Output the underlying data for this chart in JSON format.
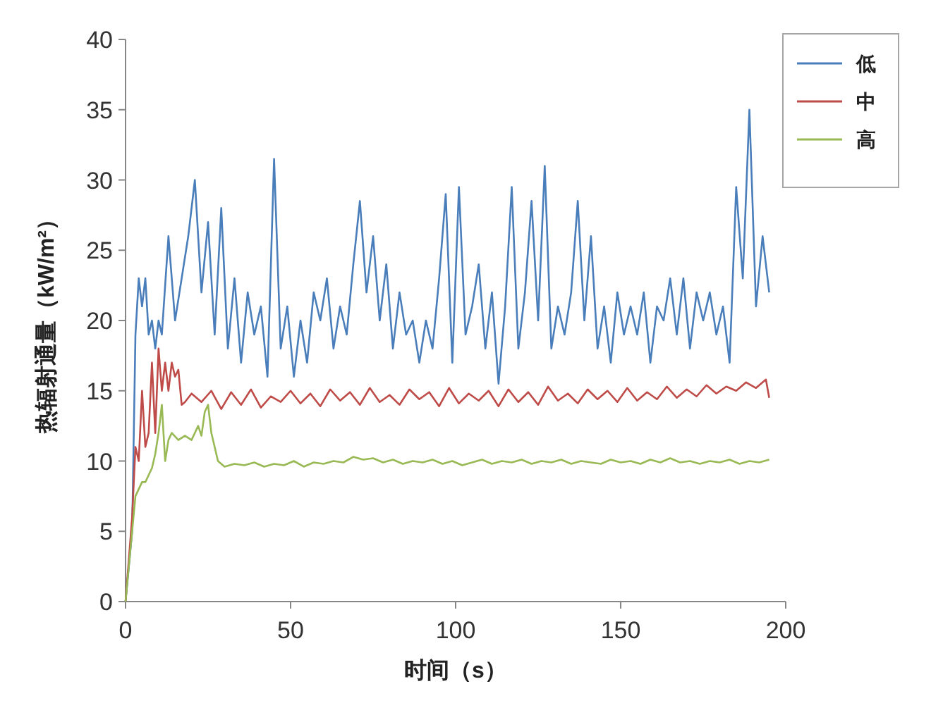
{
  "chart_data": {
    "type": "line",
    "xlabel": "时间（s）",
    "ylabel": "热辐射通量（kW/m²）",
    "xlim": [
      0,
      200
    ],
    "xticks": [
      0,
      50,
      100,
      150,
      200
    ],
    "ylim": [
      0,
      40
    ],
    "yticks": [
      0,
      5,
      10,
      15,
      20,
      25,
      30,
      35,
      40
    ],
    "grid": false,
    "legend": "top right",
    "marker": "none",
    "line_style": "solid",
    "series": [
      {
        "name": "低",
        "color": "#4a7ebb",
        "x": [
          0,
          2,
          3,
          4,
          5,
          6,
          7,
          8,
          9,
          10,
          11,
          13,
          15,
          17,
          19,
          21,
          23,
          25,
          27,
          29,
          31,
          33,
          35,
          37,
          39,
          41,
          43,
          45,
          47,
          49,
          51,
          53,
          55,
          57,
          59,
          61,
          63,
          65,
          67,
          69,
          71,
          73,
          75,
          77,
          79,
          81,
          83,
          85,
          87,
          89,
          91,
          93,
          95,
          97,
          99,
          101,
          103,
          105,
          107,
          109,
          111,
          113,
          115,
          117,
          119,
          121,
          123,
          125,
          127,
          129,
          131,
          133,
          135,
          137,
          139,
          141,
          143,
          145,
          147,
          149,
          151,
          153,
          155,
          157,
          159,
          161,
          163,
          165,
          167,
          169,
          171,
          173,
          175,
          177,
          179,
          181,
          183,
          185,
          187,
          189,
          191,
          193,
          195
        ],
        "values": [
          0,
          5,
          19,
          23,
          21,
          23,
          19,
          20,
          18,
          20,
          19,
          26,
          20,
          23,
          26,
          30,
          22,
          27,
          19,
          28,
          18,
          23,
          17,
          22,
          19,
          21,
          16,
          31.5,
          18,
          21,
          16,
          20,
          17,
          22,
          20,
          23,
          18,
          21,
          19,
          24,
          28.5,
          22,
          26,
          20,
          24,
          18,
          22,
          19,
          20,
          17,
          20,
          18,
          23,
          29,
          17,
          29.5,
          19,
          21,
          24,
          18,
          22,
          15.5,
          21,
          29.5,
          18,
          22,
          28.5,
          20,
          31,
          18,
          21,
          19,
          22,
          28.5,
          20,
          26,
          18,
          21,
          17,
          22,
          19,
          21,
          19,
          22,
          17,
          21,
          20,
          23,
          19,
          23,
          18,
          22,
          20,
          22,
          19,
          21,
          17,
          29.5,
          23,
          35,
          21,
          26,
          22
        ]
      },
      {
        "name": "中",
        "color": "#be4b48",
        "x": [
          0,
          2,
          3,
          4,
          5,
          6,
          7,
          8,
          9,
          10,
          11,
          12,
          13,
          14,
          15,
          16,
          17,
          18,
          20,
          23,
          26,
          29,
          32,
          35,
          38,
          41,
          44,
          47,
          50,
          53,
          56,
          59,
          62,
          65,
          68,
          71,
          74,
          77,
          80,
          83,
          86,
          89,
          92,
          95,
          98,
          101,
          104,
          107,
          110,
          113,
          116,
          119,
          122,
          125,
          128,
          131,
          134,
          137,
          140,
          143,
          146,
          149,
          152,
          155,
          158,
          161,
          164,
          167,
          170,
          173,
          176,
          179,
          182,
          185,
          188,
          191,
          194,
          195
        ],
        "values": [
          0,
          6,
          11,
          10,
          15,
          11,
          12,
          17,
          12,
          18,
          15,
          17,
          15,
          17,
          16,
          16.5,
          14,
          14.2,
          14.8,
          14.2,
          15.0,
          13.7,
          14.9,
          14.0,
          15.1,
          13.8,
          14.6,
          14.2,
          15.0,
          14.1,
          14.8,
          13.9,
          15.1,
          14.3,
          14.9,
          14.0,
          15.2,
          14.2,
          14.7,
          14.0,
          15.1,
          14.4,
          14.9,
          13.9,
          15.2,
          14.1,
          14.8,
          14.3,
          15.0,
          13.9,
          15.1,
          14.2,
          14.9,
          14.0,
          15.3,
          14.3,
          14.8,
          14.1,
          15.1,
          14.4,
          15.0,
          14.2,
          15.2,
          14.3,
          14.9,
          14.4,
          15.3,
          14.5,
          15.1,
          14.6,
          15.4,
          14.8,
          15.3,
          15.0,
          15.6,
          15.2,
          15.8,
          14.5
        ]
      },
      {
        "name": "高",
        "color": "#98b954",
        "x": [
          0,
          2,
          3,
          4,
          5,
          6,
          7,
          8,
          9,
          10,
          11,
          12,
          13,
          14,
          16,
          18,
          20,
          22,
          23,
          24,
          25,
          26,
          27,
          28,
          30,
          33,
          36,
          39,
          42,
          45,
          48,
          51,
          54,
          57,
          60,
          63,
          66,
          69,
          72,
          75,
          78,
          81,
          84,
          87,
          90,
          93,
          96,
          99,
          102,
          105,
          108,
          111,
          114,
          117,
          120,
          123,
          126,
          129,
          132,
          135,
          138,
          141,
          144,
          147,
          150,
          153,
          156,
          159,
          162,
          165,
          168,
          171,
          174,
          177,
          180,
          183,
          186,
          189,
          192,
          195
        ],
        "values": [
          0,
          5,
          7.5,
          8,
          8.5,
          8.5,
          9,
          9.5,
          10.5,
          12,
          14,
          10,
          11.5,
          12,
          11.5,
          11.8,
          11.5,
          12.5,
          11.8,
          13.5,
          14,
          12,
          11,
          10,
          9.6,
          9.8,
          9.7,
          9.9,
          9.6,
          9.8,
          9.7,
          10.0,
          9.6,
          9.9,
          9.8,
          10.0,
          9.9,
          10.3,
          10.1,
          10.2,
          9.9,
          10.1,
          9.8,
          10.0,
          9.9,
          10.1,
          9.8,
          10.0,
          9.7,
          9.9,
          10.1,
          9.8,
          10.0,
          9.9,
          10.1,
          9.8,
          10.0,
          9.9,
          10.1,
          9.8,
          10.0,
          9.9,
          9.8,
          10.1,
          9.9,
          10.0,
          9.8,
          10.1,
          9.9,
          10.2,
          9.9,
          10.0,
          9.8,
          10.0,
          9.9,
          10.1,
          9.8,
          10.0,
          9.9,
          10.1
        ]
      }
    ]
  }
}
